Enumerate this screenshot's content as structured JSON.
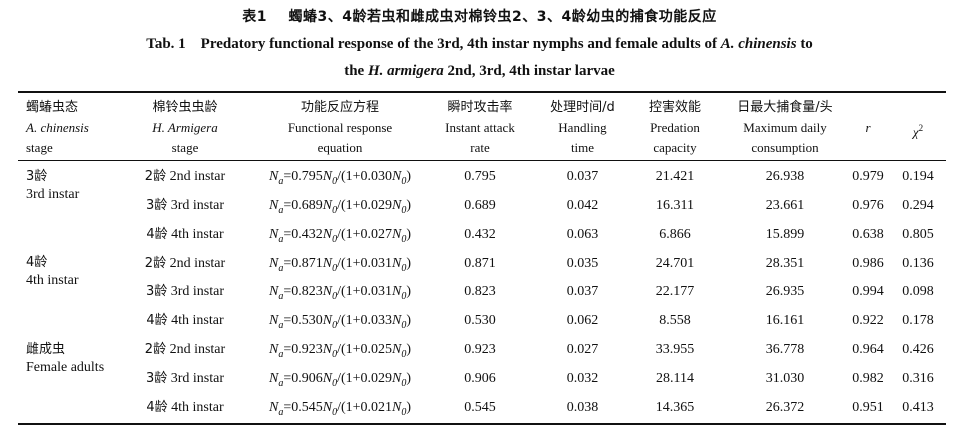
{
  "caption": {
    "label_cn": "表1",
    "title_cn": "蠋蝽3、4龄若虫和雌成虫对棉铃虫2、3、4龄幼虫的捕食功能反应",
    "label_en": "Tab. 1",
    "title_en_line1_a": "Predatory functional response of the 3rd, 4th instar nymphs and female adults of ",
    "title_en_line1_species": "A. chinensis",
    "title_en_line1_b": " to",
    "title_en_line2_a": "the ",
    "title_en_line2_species": "H. armigera",
    "title_en_line2_b": " 2nd, 3rd, 4th instar larvae"
  },
  "headers": [
    {
      "cn": "蠋蝽虫态",
      "en1": "A. chinensis",
      "en2": "stage"
    },
    {
      "cn": "棉铃虫虫龄",
      "en1": "H. Armigera",
      "en2": "stage"
    },
    {
      "cn": "功能反应方程",
      "en1": "Functional response",
      "en2": "equation"
    },
    {
      "cn": "瞬时攻击率",
      "en1": "Instant attack",
      "en2": "rate"
    },
    {
      "cn": "处理时间/d",
      "en1": "Handling",
      "en2": "time"
    },
    {
      "cn": "控害效能",
      "en1": "Predation",
      "en2": "capacity"
    },
    {
      "cn": "日最大捕食量/头",
      "en1": "Maximum daily",
      "en2": "consumption"
    },
    {
      "sym": "r"
    },
    {
      "sym": "χ",
      "sup": "2"
    }
  ],
  "groups": [
    {
      "cn": "3龄",
      "en": "3rd instar"
    },
    {
      "cn": "4龄",
      "en": "4th instar"
    },
    {
      "cn": "雌成虫",
      "en": "Female adults"
    }
  ],
  "rows": [
    {
      "instar_cn": "2龄",
      "instar_en": "2nd instar",
      "eq_a": "0.795",
      "eq_b": "0.030",
      "attack": "0.795",
      "handling": "0.037",
      "capacity": "21.421",
      "maxdaily": "26.938",
      "r": "0.979",
      "chi2": "0.194"
    },
    {
      "instar_cn": "3龄",
      "instar_en": "3rd instar",
      "eq_a": "0.689",
      "eq_b": "0.029",
      "attack": "0.689",
      "handling": "0.042",
      "capacity": "16.311",
      "maxdaily": "23.661",
      "r": "0.976",
      "chi2": "0.294"
    },
    {
      "instar_cn": "4龄",
      "instar_en": "4th instar",
      "eq_a": "0.432",
      "eq_b": "0.027",
      "attack": "0.432",
      "handling": "0.063",
      "capacity": "6.866",
      "maxdaily": "15.899",
      "r": "0.638",
      "chi2": "0.805"
    },
    {
      "instar_cn": "2龄",
      "instar_en": "2nd instar",
      "eq_a": "0.871",
      "eq_b": "0.031",
      "attack": "0.871",
      "handling": "0.035",
      "capacity": "24.701",
      "maxdaily": "28.351",
      "r": "0.986",
      "chi2": "0.136"
    },
    {
      "instar_cn": "3龄",
      "instar_en": "3rd instar",
      "eq_a": "0.823",
      "eq_b": "0.031",
      "attack": "0.823",
      "handling": "0.037",
      "capacity": "22.177",
      "maxdaily": "26.935",
      "r": "0.994",
      "chi2": "0.098"
    },
    {
      "instar_cn": "4龄",
      "instar_en": "4th instar",
      "eq_a": "0.530",
      "eq_b": "0.033",
      "attack": "0.530",
      "handling": "0.062",
      "capacity": "8.558",
      "maxdaily": "16.161",
      "r": "0.922",
      "chi2": "0.178"
    },
    {
      "instar_cn": "2龄",
      "instar_en": "2nd instar",
      "eq_a": "0.923",
      "eq_b": "0.025",
      "attack": "0.923",
      "handling": "0.027",
      "capacity": "33.955",
      "maxdaily": "36.778",
      "r": "0.964",
      "chi2": "0.426"
    },
    {
      "instar_cn": "3龄",
      "instar_en": "3rd instar",
      "eq_a": "0.906",
      "eq_b": "0.029",
      "attack": "0.906",
      "handling": "0.032",
      "capacity": "28.114",
      "maxdaily": "31.030",
      "r": "0.982",
      "chi2": "0.316"
    },
    {
      "instar_cn": "4龄",
      "instar_en": "4th instar",
      "eq_a": "0.545",
      "eq_b": "0.021",
      "attack": "0.545",
      "handling": "0.038",
      "capacity": "14.365",
      "maxdaily": "26.372",
      "r": "0.951",
      "chi2": "0.413"
    }
  ]
}
